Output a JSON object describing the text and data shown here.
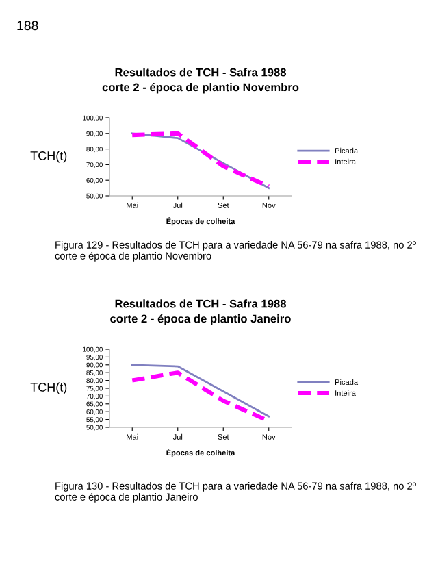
{
  "chart_data": [
    {
      "type": "line",
      "title": "Resultados de TCH - Safra 1988\ncorte 2 - época de plantio Novembro",
      "xlabel": "Épocas de colheita",
      "ylabel": "TCH(t)",
      "categories": [
        "Mai",
        "Jul",
        "Set",
        "Nov"
      ],
      "series": [
        {
          "name": "Picada",
          "color": "#8080c0",
          "line_style": "solid",
          "values": [
            90,
            87,
            71,
            55
          ]
        },
        {
          "name": "Inteira",
          "color": "#ff00ff",
          "line_style": "dashed",
          "values": [
            89,
            90,
            69,
            56
          ]
        }
      ],
      "ylim": [
        50,
        100
      ],
      "yticks": [
        {
          "value": 50,
          "label": "50,00"
        },
        {
          "value": 60,
          "label": "60,00"
        },
        {
          "value": 70,
          "label": "70,00"
        },
        {
          "value": 80,
          "label": "80,00"
        },
        {
          "value": 90,
          "label": "90,00"
        },
        {
          "value": 100,
          "label": "100,00"
        }
      ],
      "grid": false,
      "legend": "right",
      "marker": "none",
      "annotations": [
        "188",
        "Figura 129 - Resultados de TCH para a variedade NA 56-79 na safra 1988, no 2º corte e época de plantio Novembro"
      ]
    },
    {
      "type": "line",
      "title": "Resultados de TCH - Safra 1988\ncorte 2 - época de plantio Janeiro",
      "xlabel": "Épocas de colheita",
      "ylabel": "TCH(t)",
      "categories": [
        "Mai",
        "Jul",
        "Set",
        "Nov"
      ],
      "series": [
        {
          "name": "Picada",
          "color": "#8080c0",
          "line_style": "solid",
          "values": [
            90,
            89,
            73,
            57
          ]
        },
        {
          "name": "Inteira",
          "color": "#ff00ff",
          "line_style": "dashed",
          "values": [
            80,
            85,
            67,
            54
          ]
        }
      ],
      "ylim": [
        50,
        100
      ],
      "yticks": [
        {
          "value": 50,
          "label": "50,00"
        },
        {
          "value": 55,
          "label": "55,00"
        },
        {
          "value": 60,
          "label": "60,00"
        },
        {
          "value": 65,
          "label": "65,00"
        },
        {
          "value": 70,
          "label": "70,00"
        },
        {
          "value": 75,
          "label": "75,00"
        },
        {
          "value": 80,
          "label": "80,00"
        },
        {
          "value": 85,
          "label": "85,00"
        },
        {
          "value": 90,
          "label": "90,00"
        },
        {
          "value": 95,
          "label": "95,00"
        },
        {
          "value": 100,
          "label": "100,00"
        }
      ],
      "grid": false,
      "legend": "right",
      "marker": "none",
      "annotations": [
        "Figura 130 - Resultados de TCH para a variedade NA 56-79 na safra 1988, no 2º corte e época de plantio Janeiro"
      ]
    }
  ]
}
